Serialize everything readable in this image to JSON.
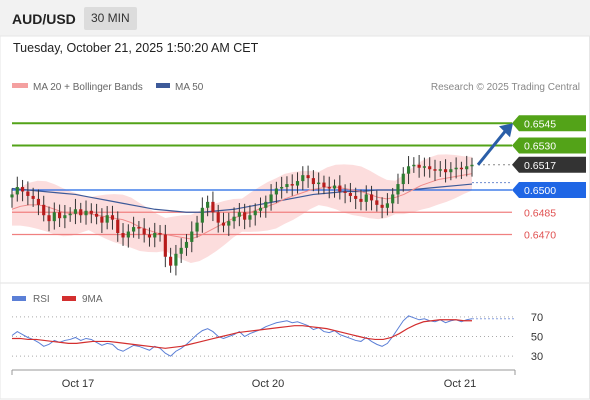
{
  "header": {
    "pair": "AUD/USD",
    "timeframe": "30 MIN",
    "timestamp": "Tuesday, October 21, 2025 1:50:20 AM CET"
  },
  "legend": {
    "ma_label": "MA 20 + Bollinger Bands",
    "ma50_label": "MA 50",
    "source": "Research © 2025 Trading Central"
  },
  "colors": {
    "up": "#2e7d32",
    "down": "#b71c1c",
    "resistance": "#53a318",
    "current": "#333333",
    "pivot": "#1f66e5",
    "support": "#f08080",
    "arrow": "#2a5ea8",
    "ma50": "#3d5a99",
    "rsi": "#5b7fd6",
    "rsi_ma": "#d32f2f",
    "band": "#fbd2d2"
  },
  "chart_data": {
    "type": "candlestick",
    "title": "AUD/USD",
    "timeframe": "30 MIN",
    "x_ticks": [
      "Oct 17",
      "Oct 20",
      "Oct 21"
    ],
    "ylim": [
      0.644,
      0.656
    ],
    "levels": [
      {
        "value": 0.6545,
        "label": "0.6545",
        "kind": "resistance"
      },
      {
        "value": 0.653,
        "label": "0.6530",
        "kind": "resistance"
      },
      {
        "value": 0.6517,
        "label": "0.6517",
        "kind": "current"
      },
      {
        "value": 0.65,
        "label": "0.6500",
        "kind": "pivot"
      },
      {
        "value": 0.6485,
        "label": "0.6485",
        "kind": "support"
      },
      {
        "value": 0.647,
        "label": "0.6470",
        "kind": "support"
      }
    ],
    "arrow": {
      "from": 0.6517,
      "to": 0.6545,
      "direction": "up"
    },
    "price_series": [
      0.6497,
      0.6502,
      0.6499,
      0.6496,
      0.6494,
      0.649,
      0.6483,
      0.6479,
      0.6485,
      0.6481,
      0.6483,
      0.6484,
      0.6487,
      0.6483,
      0.6486,
      0.6484,
      0.6482,
      0.6478,
      0.6483,
      0.648,
      0.6471,
      0.6468,
      0.6472,
      0.6475,
      0.6474,
      0.647,
      0.6468,
      0.6471,
      0.647,
      0.6455,
      0.6449,
      0.6457,
      0.6461,
      0.6465,
      0.6472,
      0.6478,
      0.6488,
      0.6492,
      0.6485,
      0.6478,
      0.6476,
      0.6479,
      0.6482,
      0.6485,
      0.648,
      0.6483,
      0.6486,
      0.6488,
      0.6492,
      0.6497,
      0.6501,
      0.6502,
      0.6504,
      0.6503,
      0.6506,
      0.651,
      0.6508,
      0.6504,
      0.6505,
      0.6502,
      0.6501,
      0.6503,
      0.6499,
      0.6498,
      0.6496,
      0.6494,
      0.6492,
      0.6497,
      0.6493,
      0.649,
      0.6488,
      0.6491,
      0.6497,
      0.6504,
      0.6511,
      0.6516,
      0.6517,
      0.6515,
      0.6516,
      0.6514,
      0.6513,
      0.6514,
      0.6512,
      0.6514,
      0.6515,
      0.6514,
      0.6516,
      0.6517
    ],
    "ma20": [
      0.6487,
      0.6489,
      0.649,
      0.649,
      0.6489,
      0.6487,
      0.6485,
      0.6484,
      0.6484,
      0.6484,
      0.6483,
      0.6482,
      0.6481,
      0.648,
      0.6478,
      0.6475,
      0.6473,
      0.6471,
      0.647,
      0.6469,
      0.6468,
      0.6467,
      0.6469,
      0.6472,
      0.6475,
      0.6478,
      0.6481,
      0.6483,
      0.6485,
      0.6487,
      0.6489,
      0.6491,
      0.6494,
      0.6496,
      0.6498,
      0.65,
      0.6501,
      0.6502,
      0.6502,
      0.6501,
      0.65,
      0.6499,
      0.6497,
      0.6495,
      0.6494,
      0.6495,
      0.6497,
      0.65,
      0.6503,
      0.6505,
      0.6507,
      0.6508,
      0.6509,
      0.651,
      0.6511
    ],
    "ma50": [
      0.6501,
      0.65,
      0.6499,
      0.6498,
      0.6497,
      0.6495,
      0.6493,
      0.6491,
      0.6489,
      0.6487,
      0.6486,
      0.6485,
      0.6485,
      0.6486,
      0.6487,
      0.6489,
      0.6491,
      0.6493,
      0.6495,
      0.6497,
      0.6498,
      0.6499,
      0.6499,
      0.65,
      0.65,
      0.65,
      0.6501,
      0.6502,
      0.6503,
      0.6504
    ],
    "rsi_panel": {
      "ylim": [
        20,
        80
      ],
      "levels": [
        70,
        50,
        30
      ],
      "legend": [
        "RSI",
        "9MA"
      ],
      "rsi": [
        51,
        55,
        52,
        49,
        47,
        44,
        40,
        42,
        46,
        44,
        46,
        47,
        49,
        46,
        48,
        47,
        44,
        41,
        43,
        42,
        37,
        35,
        38,
        41,
        40,
        38,
        36,
        40,
        38,
        33,
        30,
        35,
        38,
        42,
        47,
        52,
        56,
        58,
        55,
        50,
        48,
        50,
        52,
        55,
        50,
        53,
        55,
        57,
        60,
        62,
        64,
        65,
        66,
        64,
        65,
        63,
        61,
        57,
        59,
        55,
        54,
        56,
        52,
        50,
        48,
        46,
        45,
        49,
        45,
        42,
        40,
        43,
        50,
        58,
        66,
        71,
        69,
        67,
        68,
        66,
        65,
        67,
        64,
        66,
        67,
        65,
        67,
        68
      ],
      "rsi_ma": [
        48,
        48,
        47,
        47,
        46,
        45,
        44,
        43,
        43,
        44,
        45,
        45,
        45,
        44,
        43,
        42,
        41,
        40,
        39,
        38,
        39,
        40,
        42,
        44,
        46,
        48,
        50,
        52,
        54,
        55,
        56,
        57,
        58,
        59,
        60,
        61,
        61,
        60,
        59,
        58,
        56,
        54,
        52,
        50,
        48,
        47,
        47,
        49,
        53,
        58,
        62,
        65,
        66,
        67,
        67,
        67,
        66,
        66
      ]
    }
  }
}
